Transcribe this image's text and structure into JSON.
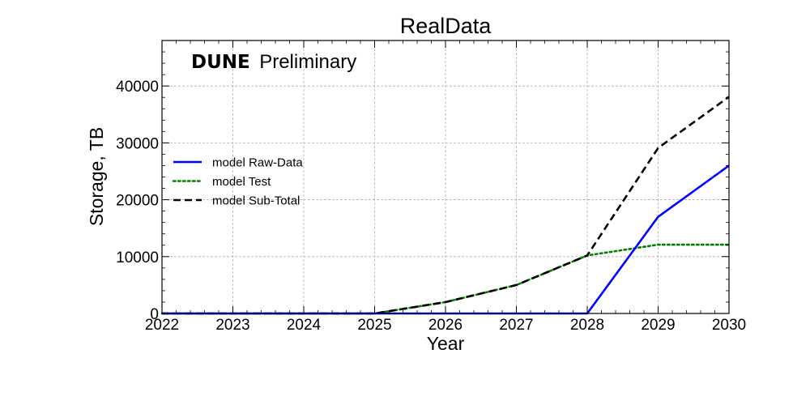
{
  "chart_data": {
    "type": "line",
    "title": "RealData",
    "xlabel": "Year",
    "ylabel": "Storage, TB",
    "annotation": {
      "bold": "DUNE",
      "text": "Preliminary"
    },
    "x": [
      2022,
      2023,
      2024,
      2025,
      2026,
      2027,
      2028,
      2029,
      2030
    ],
    "xlim": [
      2022,
      2030
    ],
    "ylim": [
      0,
      48000
    ],
    "xticks": [
      "2022",
      "2023",
      "2024",
      "2025",
      "2026",
      "2027",
      "2028",
      "2029",
      "2030"
    ],
    "yticks": [
      "0",
      "10000",
      "20000",
      "30000",
      "40000"
    ],
    "grid": true,
    "legend_position": "center-left",
    "series": [
      {
        "name": "model Raw-Data",
        "color": "#0000ff",
        "style": "solid",
        "values": [
          0,
          0,
          0,
          0,
          0,
          0,
          0,
          17000,
          26000
        ]
      },
      {
        "name": "model Test",
        "color": "#008000",
        "style": "dotted",
        "values": [
          0,
          0,
          0,
          0,
          2000,
          5000,
          10200,
          12100,
          12100
        ]
      },
      {
        "name": "model Sub-Total",
        "color": "#000000",
        "style": "dashed",
        "values": [
          0,
          0,
          0,
          0,
          2000,
          5000,
          10200,
          29100,
          38100
        ]
      }
    ]
  }
}
